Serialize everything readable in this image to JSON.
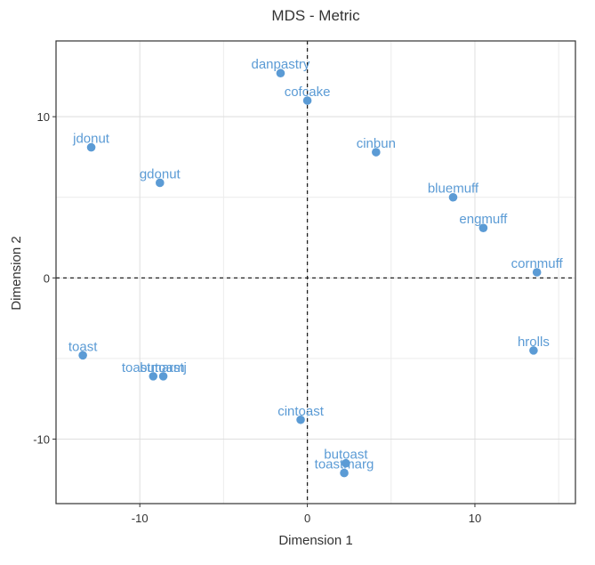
{
  "chart_data": {
    "type": "scatter",
    "title": "MDS - Metric",
    "xlabel": "Dimension 1",
    "ylabel": "Dimension 2",
    "xlim": [
      -15,
      16
    ],
    "ylim": [
      -14,
      14.7
    ],
    "xticks": [
      -10,
      0,
      10
    ],
    "yticks": [
      -10,
      0,
      10
    ],
    "xtick_labels": [
      "-10",
      "0",
      "10"
    ],
    "ytick_labels": [
      "-10",
      "0",
      "10"
    ],
    "grid": true,
    "reference_lines": {
      "x": 0,
      "y": 0,
      "style": "dashed"
    },
    "point_color": "#5b9bd5",
    "label_color": "#5b9bd5",
    "points": [
      {
        "label": "danpastry",
        "x": -1.6,
        "y": 12.7
      },
      {
        "label": "cofcake",
        "x": 0.0,
        "y": 11.0
      },
      {
        "label": "jdonut",
        "x": -12.9,
        "y": 8.1
      },
      {
        "label": "gdonut",
        "x": -8.8,
        "y": 5.9
      },
      {
        "label": "cinbun",
        "x": 4.1,
        "y": 7.8
      },
      {
        "label": "bluemuff",
        "x": 8.7,
        "y": 5.0
      },
      {
        "label": "engmuff",
        "x": 10.5,
        "y": 3.1
      },
      {
        "label": "cornmuff",
        "x": 13.7,
        "y": 0.35
      },
      {
        "label": "hrolls",
        "x": 13.5,
        "y": -4.5
      },
      {
        "label": "toast",
        "x": -13.4,
        "y": -4.8
      },
      {
        "label": "toastmarm",
        "x": -9.2,
        "y": -6.1
      },
      {
        "label": "butoastj",
        "x": -8.6,
        "y": -6.1
      },
      {
        "label": "cintoast",
        "x": -0.4,
        "y": -8.8
      },
      {
        "label": "butoast",
        "x": 2.3,
        "y": -11.5
      },
      {
        "label": "toastmarg",
        "x": 2.2,
        "y": -12.1
      }
    ]
  }
}
